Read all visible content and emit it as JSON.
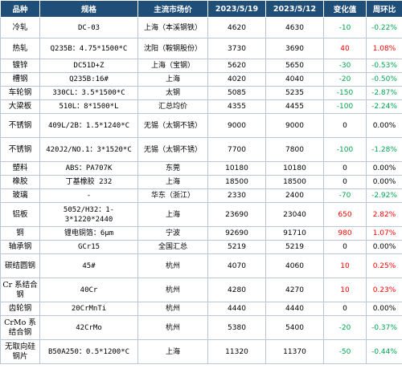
{
  "headers": [
    "品种",
    "规格",
    "主流市场价",
    "2023/5/19",
    "2023/5/12",
    "变化值",
    "周环比"
  ],
  "rows": [
    {
      "name": "冷轧",
      "spec": "DC-03",
      "place": "上海（本溪钢铁）",
      "p1": "4620",
      "p2": "4630",
      "chg": "-10",
      "pct": "-0.22%",
      "dir": "neg",
      "h": 26
    },
    {
      "name": "热轧",
      "spec": "Q235B：4.75*1500*C",
      "place": "沈阳（鞍钢股份）",
      "p1": "3730",
      "p2": "3690",
      "chg": "40",
      "pct": "1.08%",
      "dir": "pos",
      "h": 26
    },
    {
      "name": "镀锌",
      "spec": "DC51D+Z",
      "place": "上海（宝钢）",
      "p1": "5620",
      "p2": "5650",
      "chg": "-30",
      "pct": "-0.53%",
      "dir": "neg",
      "h": 17
    },
    {
      "name": "槽钢",
      "spec": "Q235B:16#",
      "place": "上海",
      "p1": "4020",
      "p2": "4040",
      "chg": "-20",
      "pct": "-0.50%",
      "dir": "neg",
      "h": 17
    },
    {
      "name": "车轮钢",
      "spec": "330CL：3.5*1500*C",
      "place": "太钢",
      "p1": "5085",
      "p2": "5235",
      "chg": "-150",
      "pct": "-2.87%",
      "dir": "neg",
      "h": 17
    },
    {
      "name": "大梁板",
      "spec": "510L：8*1500*L",
      "place": "汇总均价",
      "p1": "4355",
      "p2": "4455",
      "chg": "-100",
      "pct": "-2.24%",
      "dir": "neg",
      "h": 17
    },
    {
      "name": "不锈钢",
      "spec": "409L/2B：1.5*1240*C",
      "place": "无锡（太钢不锈）",
      "p1": "9000",
      "p2": "9000",
      "chg": "0",
      "pct": "0.00%",
      "dir": "zero",
      "h": 30
    },
    {
      "name": "不锈钢",
      "spec": "420J2/NO.1：3*1520*C",
      "place": "无锡（太钢不锈）",
      "p1": "7700",
      "p2": "7800",
      "chg": "-100",
      "pct": "-1.28%",
      "dir": "neg",
      "h": 30
    },
    {
      "name": "塑料",
      "spec": "ABS：PA707K",
      "place": "东莞",
      "p1": "10180",
      "p2": "10180",
      "chg": "0",
      "pct": "0.00%",
      "dir": "zero",
      "h": 17
    },
    {
      "name": "橡胶",
      "spec": "丁基橡胶 232",
      "place": "上海",
      "p1": "18500",
      "p2": "18500",
      "chg": "0",
      "pct": "0.00%",
      "dir": "zero",
      "h": 17
    },
    {
      "name": "玻璃",
      "spec": "-",
      "place": "华东（浙江）",
      "p1": "2330",
      "p2": "2400",
      "chg": "-70",
      "pct": "-2.92%",
      "dir": "neg",
      "h": 17
    },
    {
      "name": "铝板",
      "spec": "5052/H32：1-3*1220*2440",
      "place": "上海",
      "p1": "23690",
      "p2": "23040",
      "chg": "650",
      "pct": "2.82%",
      "dir": "pos",
      "h": 30
    },
    {
      "name": "铜",
      "spec": "锂电铜箔：6μm",
      "place": "宁波",
      "p1": "92690",
      "p2": "91710",
      "chg": "980",
      "pct": "1.07%",
      "dir": "pos",
      "h": 17
    },
    {
      "name": "轴承钢",
      "spec": "GCr15",
      "place": "全国汇总",
      "p1": "5219",
      "p2": "5219",
      "chg": "0",
      "pct": "0.00%",
      "dir": "zero",
      "h": 17
    },
    {
      "name": "碳结圆钢",
      "spec": "45#",
      "place": "杭州",
      "p1": "4070",
      "p2": "4060",
      "chg": "10",
      "pct": "0.25%",
      "dir": "pos",
      "h": 30
    },
    {
      "name": "Cr 系结合钢",
      "spec": "40Cr",
      "place": "杭州",
      "p1": "4280",
      "p2": "4270",
      "chg": "10",
      "pct": "0.23%",
      "dir": "pos",
      "h": 30
    },
    {
      "name": "齿轮钢",
      "spec": "20CrMnTi",
      "place": "杭州",
      "p1": "4440",
      "p2": "4440",
      "chg": "0",
      "pct": "0.00%",
      "dir": "zero",
      "h": 17
    },
    {
      "name": "CrMo 系结合钢",
      "spec": "42CrMo",
      "place": "杭州",
      "p1": "5380",
      "p2": "5400",
      "chg": "-20",
      "pct": "-0.37%",
      "dir": "neg",
      "h": 30
    },
    {
      "name": "无取向硅钢片",
      "spec": "B50A250：0.5*1200*C",
      "place": "上海",
      "p1": "11320",
      "p2": "11370",
      "chg": "-50",
      "pct": "-0.44%",
      "dir": "neg",
      "h": 30
    }
  ]
}
